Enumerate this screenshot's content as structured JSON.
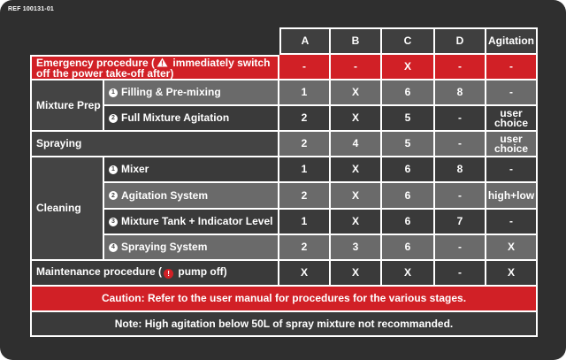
{
  "ref": "REF 100131-01",
  "columns": [
    "A",
    "B",
    "C",
    "D",
    "Agitation"
  ],
  "emergency": {
    "label_pre": "Emergency procedure (",
    "label_post": " immediately switch off the power take-off after)",
    "values": [
      "-",
      "-",
      "X",
      "-",
      "-"
    ]
  },
  "mixture_prep": {
    "group": "Mixture Prep",
    "rows": [
      {
        "num": "1",
        "label": "Filling & Pre-mixing",
        "values": [
          "1",
          "X",
          "6",
          "8",
          "-"
        ]
      },
      {
        "num": "2",
        "label": "Full Mixture Agitation",
        "values": [
          "2",
          "X",
          "5",
          "-",
          "user choice"
        ]
      }
    ]
  },
  "spraying": {
    "label": "Spraying",
    "values": [
      "2",
      "4",
      "5",
      "-",
      "user choice"
    ]
  },
  "cleaning": {
    "group": "Cleaning",
    "rows": [
      {
        "num": "1",
        "label": "Mixer",
        "values": [
          "1",
          "X",
          "6",
          "8",
          "-"
        ]
      },
      {
        "num": "2",
        "label": "Agitation System",
        "values": [
          "2",
          "X",
          "6",
          "-",
          "high+low"
        ]
      },
      {
        "num": "3",
        "label": "Mixture Tank + Indicator Level",
        "values": [
          "1",
          "X",
          "6",
          "7",
          "-"
        ]
      },
      {
        "num": "4",
        "label": "Spraying System",
        "values": [
          "2",
          "3",
          "6",
          "-",
          "X"
        ]
      }
    ]
  },
  "maintenance": {
    "label_pre": "Maintenance procedure (",
    "label_post": " pump off)",
    "stop_glyph": "!",
    "values": [
      "X",
      "X",
      "X",
      "-",
      "X"
    ]
  },
  "caution": "Caution: Refer to the user manual for procedures for the various stages.",
  "note": "Note: High agitation below 50L of spray mixture not recommanded.",
  "colors": {
    "red": "#d12026",
    "background": "#2f2f2f"
  }
}
